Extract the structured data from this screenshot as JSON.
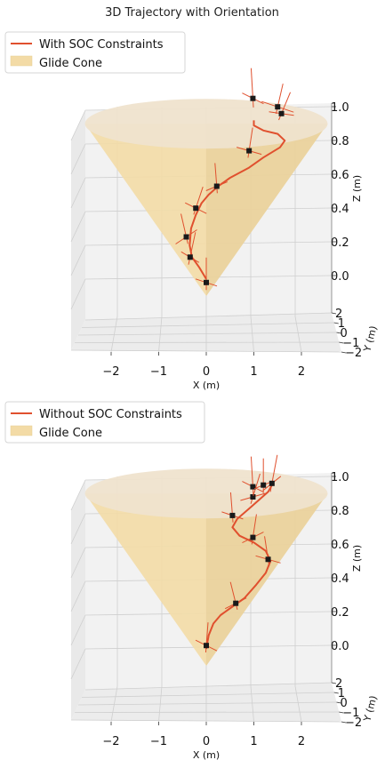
{
  "title": "3D Trajectory with Orientation",
  "colors": {
    "trajectory": "#e0502e",
    "cone_fill": "#f3dba6",
    "cone_side": "#e4c993",
    "cone_top": "#efe3cd",
    "marker": "#1a1a1a",
    "pane": "#f2f2f2",
    "grid": "#cfcfcf",
    "legend_border": "#d6d6d6"
  },
  "chart_data": [
    {
      "type": "line3d",
      "legend": [
        {
          "label": "With SOC Constraints",
          "kind": "line"
        },
        {
          "label": "Glide Cone",
          "kind": "patch"
        }
      ],
      "xlabel": "X (m)",
      "ylabel": "Y (m)",
      "zlabel": "Z (m)",
      "x_ticks": [
        "−2",
        "−1",
        "0",
        "1",
        "2"
      ],
      "y_ticks": [
        "2",
        "1",
        "0",
        "−1",
        "−2"
      ],
      "z_ticks": [
        "0.0",
        "0.2",
        "0.4",
        "0.6",
        "0.8",
        "1.0"
      ],
      "xlim": [
        -2.8,
        2.8
      ],
      "zlim": [
        -0.1,
        1.0
      ],
      "cone": {
        "apex_z": -0.1,
        "top_z": 0.92,
        "top_radius": 2.55
      },
      "trajectory": {
        "x": [
          0.0,
          -0.15,
          -0.3,
          -0.35,
          -0.32,
          -0.22,
          -0.1,
          0.05,
          0.25,
          0.5,
          0.9,
          1.2,
          1.55,
          1.65,
          1.5,
          1.2,
          1.0,
          1.0
        ],
        "z": [
          0.0,
          0.07,
          0.13,
          0.2,
          0.3,
          0.38,
          0.45,
          0.5,
          0.55,
          0.6,
          0.66,
          0.72,
          0.78,
          0.82,
          0.86,
          0.88,
          0.91,
          0.94
        ]
      },
      "markers": {
        "x": [
          0.0,
          -0.34,
          -0.42,
          -0.22,
          0.22,
          0.9,
          1.58,
          1.5,
          0.98
        ],
        "z": [
          -0.02,
          0.13,
          0.25,
          0.42,
          0.55,
          0.76,
          0.98,
          1.02,
          1.07
        ]
      },
      "orientation": [
        {
          "up": [
            0,
            28
          ],
          "side": [
            -12,
            -4
          ]
        },
        {
          "up": [
            6,
            28
          ],
          "side": [
            -10,
            -6
          ]
        },
        {
          "up": [
            -6,
            26
          ],
          "side": [
            12,
            -8
          ]
        },
        {
          "up": [
            8,
            24
          ],
          "side": [
            -12,
            -6
          ]
        },
        {
          "up": [
            -2,
            26
          ],
          "side": [
            12,
            -5
          ]
        },
        {
          "up": [
            4,
            26
          ],
          "side": [
            -14,
            -4
          ]
        },
        {
          "up": [
            10,
            24
          ],
          "side": [
            -14,
            -2
          ]
        },
        {
          "up": [
            6,
            26
          ],
          "side": [
            -18,
            -6
          ]
        },
        {
          "up": [
            -2,
            34
          ],
          "side": [
            -12,
            -6
          ]
        }
      ]
    },
    {
      "type": "line3d",
      "legend": [
        {
          "label": "Without SOC Constraints",
          "kind": "line"
        },
        {
          "label": "Glide Cone",
          "kind": "patch"
        }
      ],
      "xlabel": "X (m)",
      "ylabel": "Y (m)",
      "zlabel": "Z (m)",
      "x_ticks": [
        "−2",
        "−1",
        "0",
        "1",
        "2"
      ],
      "y_ticks": [
        "2",
        "1",
        "0",
        "−1",
        "−2"
      ],
      "z_ticks": [
        "0.0",
        "0.2",
        "0.4",
        "0.6",
        "0.8",
        "1.0"
      ],
      "xlim": [
        -2.8,
        2.8
      ],
      "zlim": [
        -0.1,
        1.0
      ],
      "cone": {
        "apex_z": -0.1,
        "top_z": 0.92,
        "top_radius": 2.55
      },
      "trajectory": {
        "x": [
          0.0,
          0.05,
          0.15,
          0.3,
          0.55,
          0.8,
          1.05,
          1.25,
          1.35,
          1.25,
          1.0,
          0.7,
          0.55,
          0.65,
          0.9,
          1.1,
          1.3,
          1.4
        ],
        "z": [
          0.0,
          0.08,
          0.15,
          0.2,
          0.25,
          0.3,
          0.38,
          0.45,
          0.52,
          0.58,
          0.63,
          0.67,
          0.72,
          0.77,
          0.83,
          0.88,
          0.93,
          0.98
        ]
      },
      "markers": {
        "x": [
          0.0,
          0.62,
          1.3,
          0.98,
          0.55,
          0.98,
          0.98,
          1.2,
          1.38
        ],
        "z": [
          0.02,
          0.27,
          0.53,
          0.66,
          0.79,
          0.9,
          0.96,
          0.97,
          0.98
        ]
      },
      "orientation": [
        {
          "up": [
            2,
            26
          ],
          "side": [
            -12,
            -6
          ]
        },
        {
          "up": [
            -6,
            24
          ],
          "side": [
            12,
            -6
          ]
        },
        {
          "up": [
            -4,
            26
          ],
          "side": [
            -14,
            -4
          ]
        },
        {
          "up": [
            4,
            26
          ],
          "side": [
            12,
            -6
          ]
        },
        {
          "up": [
            -2,
            26
          ],
          "side": [
            -12,
            -4
          ]
        },
        {
          "up": [
            8,
            26
          ],
          "side": [
            -14,
            4
          ]
        },
        {
          "up": [
            -2,
            34
          ],
          "side": [
            -12,
            -6
          ]
        },
        {
          "up": [
            0,
            30
          ],
          "side": [
            10,
            -4
          ]
        },
        {
          "up": [
            6,
            32
          ],
          "side": [
            10,
            -8
          ]
        }
      ]
    }
  ]
}
